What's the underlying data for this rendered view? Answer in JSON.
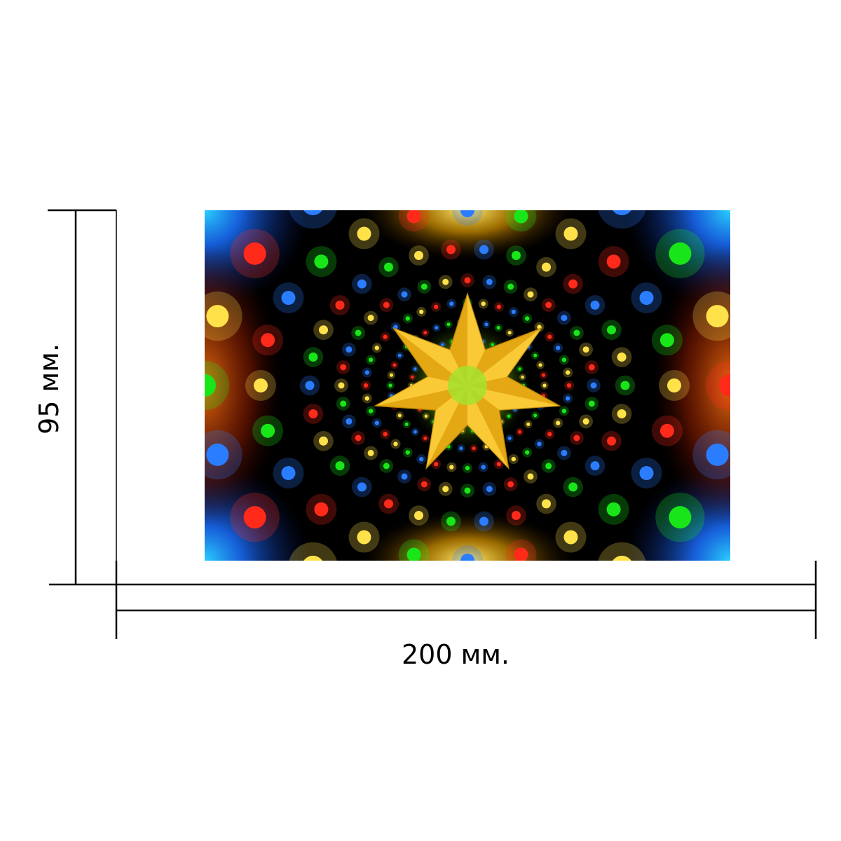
{
  "dimensions": {
    "height_label": "95 мм.",
    "width_label": "200 мм."
  },
  "artwork": {
    "subject": "star-burst-lights",
    "star_points": 7,
    "colors": {
      "background": "#000000",
      "star": "#f2b81c",
      "star_center": "#a6e22e",
      "corner_glow": "#1aa3ff",
      "edge_glow": "#ff6a00",
      "light_green": "#19e619",
      "light_yellow": "#ffe24a",
      "light_red": "#ff2a1a",
      "light_blue": "#2a7dff"
    }
  }
}
